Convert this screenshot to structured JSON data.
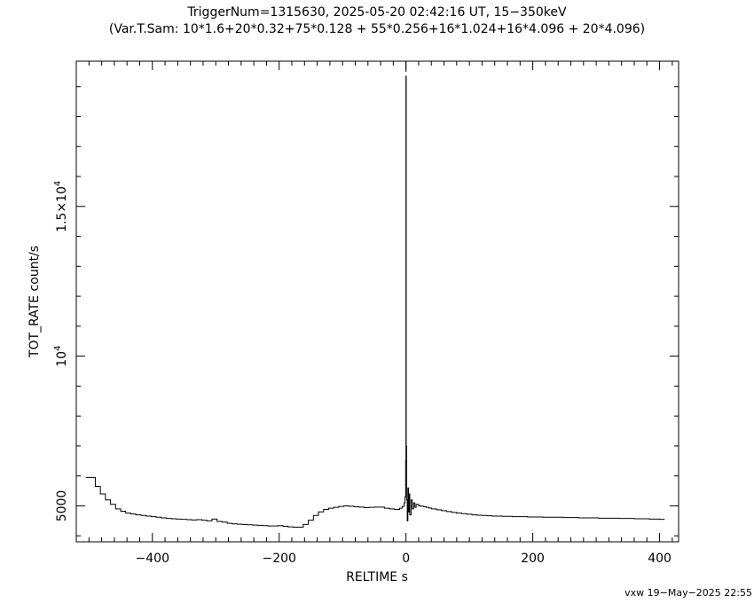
{
  "chart_data": {
    "type": "line",
    "title": "TriggerNum=1315630, 2025-05-20 02:42:16 UT, 15−350keV",
    "subtitle": "(Var.T.Sam: 10*1.6+20*0.32+75*0.128  +  55*0.256+16*1.024+16*4.096  +  20*4.096)",
    "xlabel": "RELTIME  s",
    "ylabel": "TOT_RATE  count/s",
    "footer": "vxw 19−May−2025 22:55",
    "xlim": [
      -520,
      430
    ],
    "ylim": [
      3800,
      19850
    ],
    "x_ticks": [
      {
        "value": -400,
        "label": "−400"
      },
      {
        "value": -200,
        "label": "−200"
      },
      {
        "value": 0,
        "label": "0"
      },
      {
        "value": 200,
        "label": "200"
      },
      {
        "value": 400,
        "label": "400"
      }
    ],
    "y_ticks": [
      {
        "value": 5000,
        "label": "5000"
      },
      {
        "value": 10000,
        "base": "10",
        "exp": "4"
      },
      {
        "value": 15000,
        "base": "1.5×10",
        "exp": "4"
      }
    ],
    "grid": false,
    "series": [
      {
        "x": [
          -505,
          -490,
          -482,
          -474,
          -466,
          -458,
          -450,
          -442,
          -434,
          -426,
          -418,
          -410,
          -402,
          -394,
          -386,
          -378,
          -370,
          -362,
          -354,
          -346,
          -338,
          -330,
          -322,
          -314,
          -306,
          -298,
          -290,
          -282,
          -274,
          -266,
          -258,
          -250,
          -242,
          -234,
          -226,
          -218,
          -210,
          -202,
          -194,
          -186,
          -178,
          -170,
          -162,
          -154,
          -146,
          -138,
          -130,
          -122,
          -114,
          -106,
          -98,
          -90,
          -82,
          -74,
          -66,
          -58,
          -50,
          -42,
          -34,
          -26,
          -18,
          -10,
          -6,
          -3,
          -1.5,
          -0.5,
          0,
          0.4,
          1,
          2,
          3,
          4,
          5,
          6,
          8,
          10,
          12,
          14,
          16,
          20,
          24,
          28,
          32,
          36,
          40,
          48,
          56,
          64,
          72,
          80,
          88,
          96,
          104,
          112,
          120,
          128,
          136,
          144,
          152,
          160,
          168,
          176,
          184,
          192,
          200,
          208,
          216,
          224,
          232,
          240,
          248,
          256,
          264,
          272,
          280,
          288,
          296,
          304,
          312,
          320,
          328,
          336,
          344,
          352,
          360,
          368,
          376,
          384,
          392,
          400
        ],
        "y": [
          5950,
          5650,
          5400,
          5200,
          5050,
          4900,
          4820,
          4760,
          4730,
          4700,
          4680,
          4660,
          4640,
          4620,
          4600,
          4580,
          4570,
          4560,
          4550,
          4540,
          4530,
          4540,
          4520,
          4500,
          4560,
          4480,
          4460,
          4420,
          4400,
          4390,
          4380,
          4370,
          4360,
          4350,
          4340,
          4330,
          4330,
          4340,
          4320,
          4300,
          4290,
          4290,
          4380,
          4520,
          4680,
          4800,
          4880,
          4920,
          4950,
          4980,
          5000,
          4990,
          4970,
          4960,
          4940,
          4950,
          4960,
          4960,
          4920,
          4900,
          4880,
          4920,
          4980,
          5100,
          5300,
          6500,
          19350,
          7000,
          5200,
          4500,
          5600,
          4800,
          5400,
          4700,
          5200,
          4900,
          5100,
          4950,
          5050,
          5000,
          4990,
          4970,
          4950,
          4930,
          4900,
          4870,
          4840,
          4810,
          4780,
          4760,
          4740,
          4720,
          4700,
          4690,
          4680,
          4670,
          4660,
          4660,
          4650,
          4650,
          4640,
          4640,
          4640,
          4630,
          4630,
          4630,
          4620,
          4620,
          4620,
          4620,
          4610,
          4610,
          4610,
          4600,
          4600,
          4600,
          4600,
          4590,
          4590,
          4590,
          4590,
          4580,
          4580,
          4580,
          4570,
          4570,
          4570,
          4560,
          4560,
          4550
        ]
      }
    ]
  }
}
